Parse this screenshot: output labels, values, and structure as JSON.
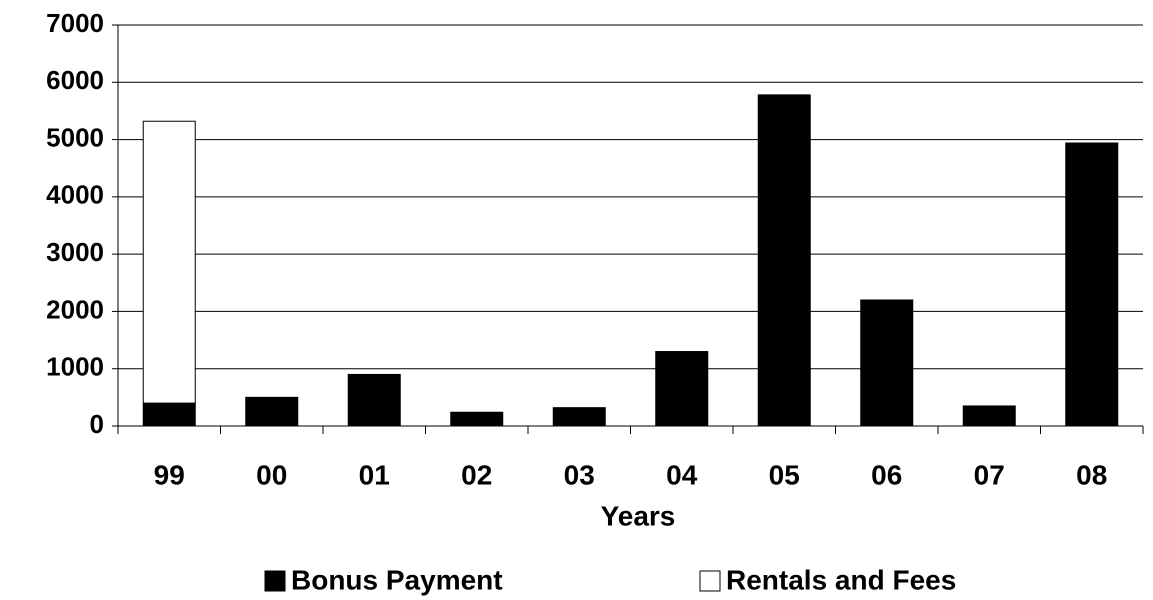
{
  "chart_data": {
    "type": "stacked_bar",
    "x_label": "Years",
    "categories": [
      "99",
      "00",
      "01",
      "02",
      "03",
      "04",
      "05",
      "06",
      "07",
      "08"
    ],
    "series": [
      {
        "name": "Bonus Payment",
        "color": "#000000",
        "values": [
          400,
          500,
          900,
          240,
          320,
          1300,
          5780,
          2200,
          350,
          4940
        ]
      },
      {
        "name": "Rentals and Fees",
        "color": "#ffffff",
        "values": [
          4920,
          0,
          0,
          0,
          0,
          0,
          0,
          0,
          0,
          0
        ]
      }
    ],
    "ylim": [
      0,
      7000
    ],
    "yticks": [
      0,
      1000,
      2000,
      3000,
      4000,
      5000,
      6000,
      7000
    ],
    "grid": true,
    "legend": "bottom"
  }
}
